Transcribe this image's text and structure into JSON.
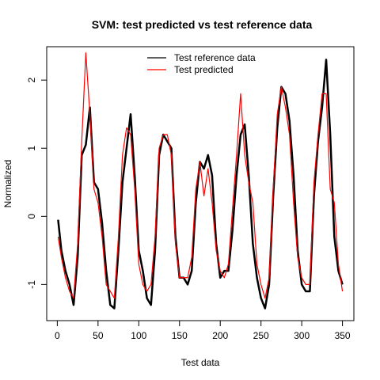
{
  "chart_data": {
    "type": "line",
    "title": "SVM: test predicted vs test reference data",
    "x_label": "Test data",
    "y_label": "Normalized",
    "x": [
      1,
      5,
      10,
      15,
      20,
      25,
      30,
      35,
      40,
      45,
      50,
      55,
      60,
      65,
      70,
      75,
      80,
      85,
      90,
      95,
      100,
      105,
      110,
      115,
      120,
      125,
      130,
      135,
      140,
      145,
      150,
      155,
      160,
      165,
      170,
      175,
      180,
      185,
      190,
      195,
      200,
      205,
      210,
      215,
      220,
      225,
      230,
      235,
      240,
      245,
      250,
      255,
      260,
      265,
      270,
      275,
      280,
      285,
      290,
      295,
      300,
      305,
      310,
      315,
      320,
      325,
      330,
      335,
      340,
      345,
      350
    ],
    "series": [
      {
        "name": "Test reference data",
        "color": "#000000",
        "values": [
          -0.05,
          -0.5,
          -0.8,
          -1.0,
          -1.3,
          -0.6,
          0.9,
          1.05,
          1.6,
          0.5,
          0.4,
          -0.1,
          -0.8,
          -1.3,
          -1.35,
          -0.5,
          0.5,
          1.0,
          1.5,
          0.6,
          -0.5,
          -0.8,
          -1.2,
          -1.3,
          -0.5,
          0.9,
          1.2,
          1.1,
          1.0,
          -0.3,
          -0.9,
          -0.9,
          -1.0,
          -0.8,
          0.2,
          0.8,
          0.7,
          0.9,
          0.6,
          -0.4,
          -0.9,
          -0.8,
          -0.8,
          -0.2,
          0.6,
          1.2,
          1.35,
          0.6,
          -0.4,
          -0.9,
          -1.2,
          -1.35,
          -1.0,
          0.3,
          1.3,
          1.9,
          1.8,
          1.4,
          0.6,
          -0.5,
          -1.0,
          -1.1,
          -1.1,
          0.3,
          1.1,
          1.6,
          2.3,
          1.2,
          -0.3,
          -0.8,
          -1.0
        ]
      },
      {
        "name": "Test predicted",
        "color": "#ff0000",
        "values": [
          -0.3,
          -0.6,
          -0.9,
          -1.1,
          -1.2,
          -0.4,
          1.1,
          2.4,
          1.5,
          0.4,
          0.2,
          -0.3,
          -1.0,
          -1.1,
          -1.2,
          -0.3,
          0.9,
          1.3,
          1.2,
          0.4,
          -0.7,
          -1.0,
          -1.1,
          -1.0,
          -0.3,
          1.0,
          1.2,
          1.2,
          0.9,
          -0.4,
          -0.9,
          -0.9,
          -0.9,
          -0.6,
          0.4,
          0.8,
          0.3,
          0.7,
          0.2,
          -0.5,
          -0.8,
          -0.9,
          -0.7,
          0.1,
          0.9,
          1.8,
          0.9,
          0.5,
          0.2,
          -0.7,
          -1.0,
          -1.2,
          -0.9,
          0.4,
          1.5,
          1.9,
          1.6,
          1.2,
          0.2,
          -0.6,
          -0.9,
          -1.0,
          -1.0,
          0.5,
          1.2,
          1.8,
          1.8,
          0.4,
          0.2,
          -0.7,
          -1.1
        ]
      }
    ],
    "xlim": [
      -13,
      364
    ],
    "ylim": [
      -1.53,
      2.49
    ],
    "xticks": [
      0,
      50,
      100,
      150,
      200,
      250,
      300,
      350
    ],
    "yticks": [
      -1,
      0,
      1,
      2
    ],
    "legend": "top"
  }
}
